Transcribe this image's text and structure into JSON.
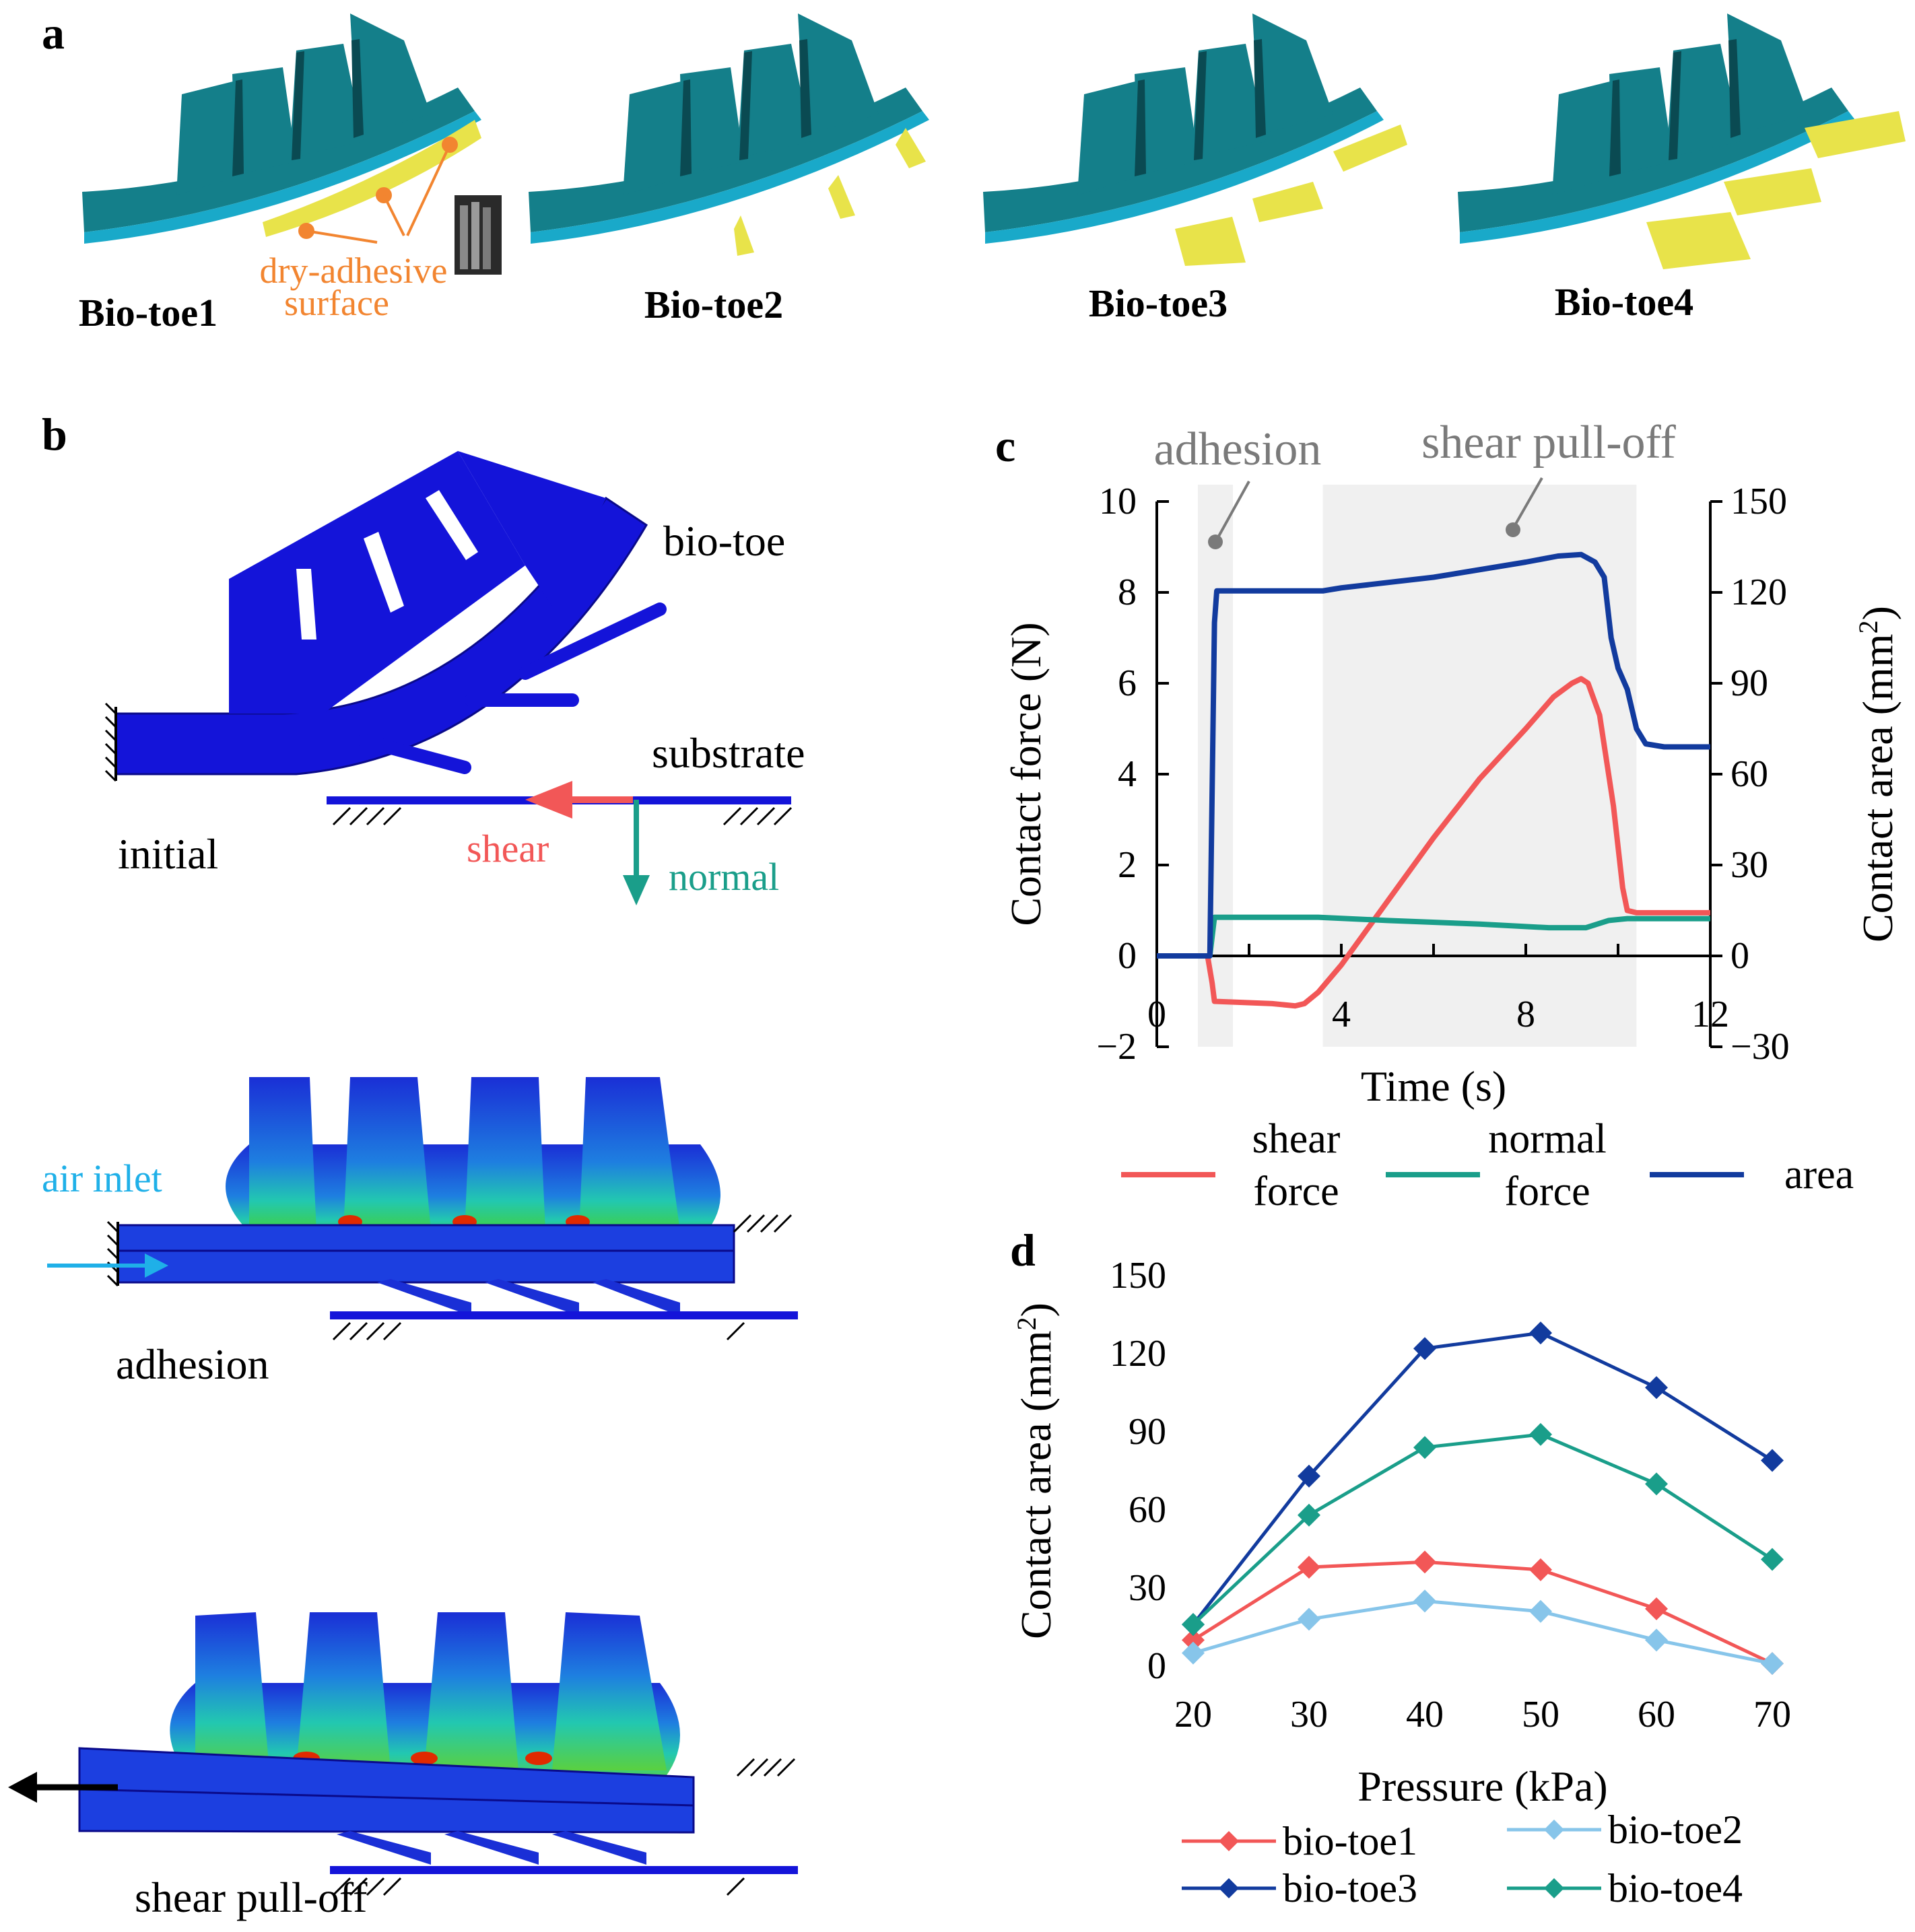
{
  "panels": {
    "a": "a",
    "b": "b",
    "c": "c",
    "d": "d"
  },
  "panel_a": {
    "toes": [
      "Bio-toe1",
      "Bio-toe2",
      "Bio-toe3",
      "Bio-toe4"
    ],
    "dry_adhesive_line1": "dry-adhesive",
    "dry_adhesive_line2": "surface"
  },
  "panel_b": {
    "bio_toe": "bio-toe",
    "substrate": "substrate",
    "initial": "initial",
    "shear": "shear",
    "normal": "normal",
    "air_inlet": "air inlet",
    "adhesion": "adhesion",
    "shear_pull_off": "shear pull-off"
  },
  "colors": {
    "toe_teal": "#147f8a",
    "toe_bottom": "#19a9c9",
    "adhesive_yellow": "#e8e34a",
    "fem_blue": "#1414d9",
    "shear_red": "#f25757",
    "normal_green": "#1a9e8a",
    "area_navy": "#123b9e",
    "bio_toe2_light": "#87c5ea",
    "annotation_orange": "#f28530",
    "shade_gray": "#f0f0f0"
  },
  "chart_data": [
    {
      "id": "c",
      "type": "line",
      "phases": [
        "adhesion",
        "shear pull-off"
      ],
      "phase_ranges": [
        [
          1.4,
          1.65
        ],
        [
          3.6,
          10.4
        ]
      ],
      "xlabel": "Time (s)",
      "ylabel": "Contact force (N)",
      "y2label": "Contact area (mm",
      "y2label_sup": "2",
      "y2label_end": ")",
      "xlim": [
        0,
        12
      ],
      "ylim": [
        -2,
        10
      ],
      "y2lim": [
        -30,
        150
      ],
      "xticks": [
        "0",
        "4",
        "8",
        "12"
      ],
      "yticks": [
        "−2",
        "0",
        "2",
        "4",
        "6",
        "8",
        "10"
      ],
      "y2ticks": [
        "−30",
        "0",
        "30",
        "60",
        "90",
        "120",
        "150"
      ],
      "series": [
        {
          "name": "shear force",
          "legend_line1": "shear",
          "legend_line2": "force",
          "axis": "left",
          "x": [
            0,
            1.1,
            1.2,
            1.25,
            2.5,
            3.0,
            3.2,
            3.5,
            4.0,
            5.0,
            6.0,
            7.0,
            8.0,
            8.6,
            9.0,
            9.2,
            9.35,
            9.6,
            9.9,
            10.1,
            10.2,
            10.4,
            11.0,
            12.0
          ],
          "y": [
            0,
            0,
            -0.6,
            -1.0,
            -1.05,
            -1.1,
            -1.05,
            -0.8,
            -0.2,
            1.2,
            2.6,
            3.9,
            5.0,
            5.7,
            6.0,
            6.1,
            6.0,
            5.3,
            3.3,
            1.5,
            1.0,
            0.95,
            0.95,
            0.95
          ]
        },
        {
          "name": "normal force",
          "legend_line1": "normal",
          "legend_line2": "force",
          "axis": "left",
          "x": [
            0,
            1.15,
            1.25,
            2.5,
            3.5,
            5,
            7,
            8.5,
            9.3,
            9.8,
            10.2,
            11,
            12
          ],
          "y": [
            0,
            0,
            0.85,
            0.85,
            0.85,
            0.78,
            0.7,
            0.62,
            0.62,
            0.78,
            0.82,
            0.82,
            0.82
          ]
        },
        {
          "name": "area",
          "legend_line1": "area",
          "legend_line2": "",
          "axis": "right",
          "x": [
            0,
            1.15,
            1.25,
            1.3,
            3.6,
            4.0,
            6.0,
            8.0,
            8.7,
            9.2,
            9.5,
            9.7,
            9.85,
            10.0,
            10.2,
            10.4,
            10.6,
            11.0,
            12.0
          ],
          "y": [
            0,
            0,
            110,
            120.5,
            120.5,
            121.5,
            125,
            130,
            132,
            132.5,
            130,
            125,
            105,
            95,
            88,
            75,
            70,
            69,
            69
          ]
        }
      ]
    },
    {
      "id": "d",
      "type": "line",
      "xlabel": "Pressure (kPa)",
      "ylabel": "Contact area (mm",
      "ylabel_sup": "2",
      "ylabel_end": ")",
      "xlim": [
        20,
        70
      ],
      "ylim": [
        0,
        150
      ],
      "categories": [
        "20",
        "30",
        "40",
        "50",
        "60",
        "70"
      ],
      "x": [
        20,
        30,
        40,
        50,
        60,
        70
      ],
      "yticks": [
        "0",
        "30",
        "60",
        "90",
        "120",
        "150"
      ],
      "series": [
        {
          "name": "bio-toe1",
          "values": [
            10,
            38,
            40,
            37,
            22,
            1
          ]
        },
        {
          "name": "bio-toe2",
          "values": [
            5,
            18,
            25,
            21,
            10,
            1
          ]
        },
        {
          "name": "bio-toe3",
          "values": [
            16,
            73,
            122,
            128,
            107,
            79
          ]
        },
        {
          "name": "bio-toe4",
          "values": [
            16,
            58,
            84,
            89,
            70,
            41
          ]
        }
      ]
    }
  ]
}
